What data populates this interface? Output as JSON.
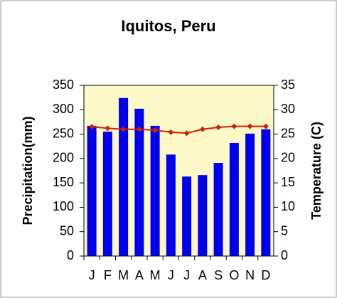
{
  "chart_data": {
    "type": "bar-line",
    "title": "Iquitos, Peru",
    "categories": [
      "J",
      "F",
      "M",
      "A",
      "M",
      "J",
      "J",
      "A",
      "S",
      "O",
      "N",
      "D"
    ],
    "series": [
      {
        "name": "Precipitation",
        "type": "bar",
        "color": "#0000ee",
        "values": [
          267,
          255,
          324,
          302,
          267,
          208,
          163,
          166,
          191,
          232,
          251,
          260
        ]
      },
      {
        "name": "Temperature",
        "type": "line",
        "axis": "y2",
        "color": "#cc2200",
        "values": [
          26.5,
          26.2,
          26,
          26,
          25.8,
          25.4,
          25.2,
          26,
          26.4,
          26.6,
          26.6,
          26.6
        ]
      }
    ],
    "ylabel": "Precipitation(mm)",
    "y2label": "Temperature (C)",
    "ylim": [
      0,
      350
    ],
    "yticks": [
      0,
      50,
      100,
      150,
      200,
      250,
      300,
      350
    ],
    "y2lim": [
      0,
      35
    ],
    "y2ticks": [
      0,
      5,
      10,
      15,
      20,
      25,
      30,
      35
    ],
    "plot_background": "#fdf8c8"
  }
}
